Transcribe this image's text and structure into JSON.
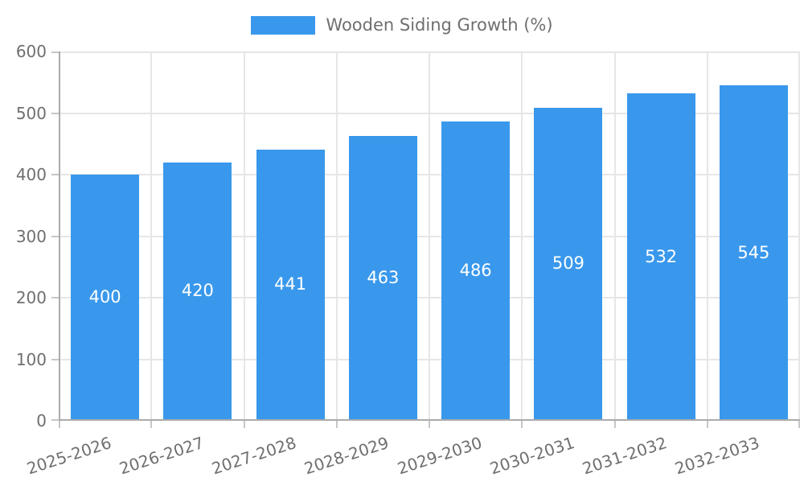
{
  "chart_data": {
    "type": "bar",
    "title": "Wooden Siding Growth (%)",
    "categories": [
      "2025-2026",
      "2026-2027",
      "2027-2028",
      "2028-2029",
      "2029-2030",
      "2030-2031",
      "2031-2032",
      "2032-2033"
    ],
    "values": [
      400,
      420,
      441,
      463,
      486,
      509,
      532,
      545
    ],
    "xlabel": "",
    "ylabel": "",
    "ylim": [
      0,
      600
    ],
    "yticks": [
      0,
      100,
      200,
      300,
      400,
      500,
      600
    ],
    "legend_position": "top",
    "grid": true,
    "bar_labels_inside": true,
    "x_label_rotation_deg": -18,
    "colors": {
      "bar": "#3998EC",
      "bar_label": "#FFFFFF",
      "axis_text": "#6F6F6F",
      "gridline": "#E6E6E6",
      "axis_line": "#ABABAB",
      "tick": "#C6C6C6",
      "background": "#FFFFFF"
    }
  }
}
